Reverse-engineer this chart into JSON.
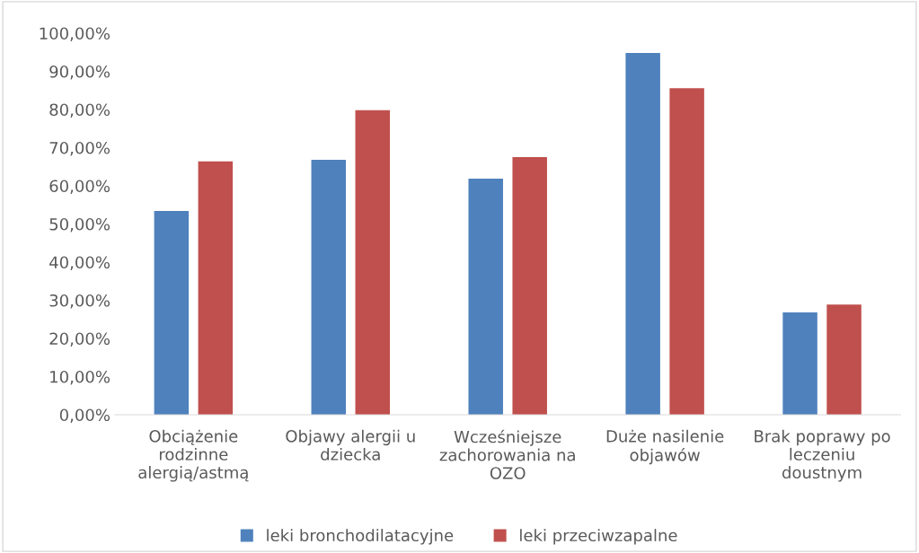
{
  "chart_data": {
    "type": "bar",
    "categories": [
      "Obciążenie\nrodzinne\nalergią/astmą",
      "Objawy alergii u\ndziecka",
      "Wcześniejsze\nzachorowania na\nOZO",
      "Duże nasilenie\nobjawów",
      "Brak poprawy po\nleczeniu\ndoustnym"
    ],
    "series": [
      {
        "name": "leki bronchodilatacyjne",
        "color": "#4f81bd",
        "values": [
          53.4,
          66.8,
          61.9,
          94.8,
          26.8
        ]
      },
      {
        "name": "leki przeciwzapalne",
        "color": "#c0504d",
        "values": [
          66.4,
          79.8,
          67.5,
          85.6,
          28.9
        ]
      }
    ],
    "ylim": [
      0,
      100
    ],
    "yticks": [
      {
        "value": 0,
        "label": "0,00%"
      },
      {
        "value": 10,
        "label": "10,00%"
      },
      {
        "value": 20,
        "label": "20,00%"
      },
      {
        "value": 30,
        "label": "30,00%"
      },
      {
        "value": 40,
        "label": "40,00%"
      },
      {
        "value": 50,
        "label": "50,00%"
      },
      {
        "value": 60,
        "label": "60,00%"
      },
      {
        "value": 70,
        "label": "70,00%"
      },
      {
        "value": 80,
        "label": "80,00%"
      },
      {
        "value": 90,
        "label": "90,00%"
      },
      {
        "value": 100,
        "label": "100,00%"
      }
    ],
    "grid": false,
    "legend": "bottom"
  }
}
